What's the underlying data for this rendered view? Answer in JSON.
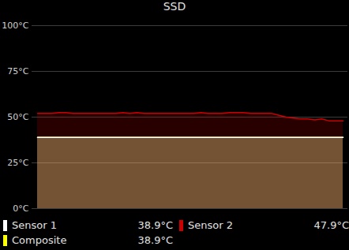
{
  "chart_data": {
    "type": "area",
    "title": "SSD",
    "categories": [
      null,
      null,
      null,
      null,
      null,
      null,
      null,
      null,
      null,
      null,
      null,
      null,
      null,
      null,
      null,
      null,
      null,
      null,
      null,
      null,
      null,
      null,
      null,
      null,
      null,
      null,
      null,
      null,
      null,
      null,
      null,
      null,
      null,
      null,
      null,
      null,
      null,
      null,
      null,
      null,
      null,
      null,
      null,
      null
    ],
    "series": [
      {
        "name": "Sensor 1",
        "color": "#ffffff",
        "current_label": "38.9°C",
        "values": [
          38.9,
          38.9,
          38.9,
          38.9,
          38.9,
          38.9,
          38.9,
          38.9,
          38.9,
          38.9,
          38.9,
          38.9,
          38.9,
          38.9,
          38.9,
          38.9,
          38.9,
          38.9,
          38.9,
          38.9,
          38.9,
          38.9,
          38.9,
          38.9,
          38.9,
          38.9,
          38.9,
          38.9,
          38.9,
          38.9,
          38.9,
          38.9,
          38.9,
          38.9,
          38.9,
          38.9,
          38.9,
          38.9,
          38.9,
          38.9,
          38.9,
          38.9,
          38.9,
          38.9
        ]
      },
      {
        "name": "Sensor 2",
        "color": "#cc0000",
        "current_label": "47.9°C",
        "values": [
          52,
          52,
          52,
          52.5,
          52.5,
          52,
          52,
          52,
          52,
          52,
          52,
          52,
          52.5,
          52,
          52.5,
          52,
          52,
          52,
          52,
          52,
          52,
          52,
          52,
          52.5,
          52,
          52,
          52,
          52.5,
          52.5,
          52.5,
          52,
          52,
          52,
          52,
          51,
          50,
          49.5,
          49,
          49,
          48.5,
          49,
          48,
          48,
          47.9
        ]
      },
      {
        "name": "Composite",
        "color": "#ffff00",
        "current_label": "38.9°C",
        "values": [
          38.9,
          38.9,
          38.9,
          38.9,
          38.9,
          38.9,
          38.9,
          38.9,
          38.9,
          38.9,
          38.9,
          38.9,
          38.9,
          38.9,
          38.9,
          38.9,
          38.9,
          38.9,
          38.9,
          38.9,
          38.9,
          38.9,
          38.9,
          38.9,
          38.9,
          38.9,
          38.9,
          38.9,
          38.9,
          38.9,
          38.9,
          38.9,
          38.9,
          38.9,
          38.9,
          38.9,
          38.9,
          38.9,
          38.9,
          38.9,
          38.9,
          38.9,
          38.9,
          38.9
        ]
      }
    ],
    "ylim": [
      0,
      100
    ],
    "yticks": [
      {
        "value": 0,
        "label": "0°C"
      },
      {
        "value": 25,
        "label": "25°C"
      },
      {
        "value": 50,
        "label": "50°C"
      },
      {
        "value": 75,
        "label": "75°C"
      },
      {
        "value": 100,
        "label": "100°C"
      }
    ],
    "grid": true,
    "legend": "bottom",
    "tick_labels": "y"
  }
}
